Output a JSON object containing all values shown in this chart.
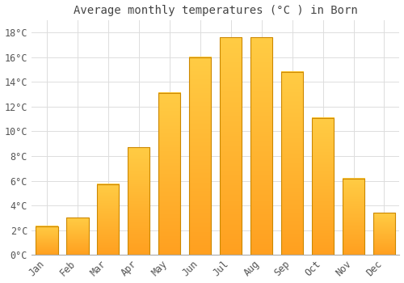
{
  "title": "Average monthly temperatures (°C ) in Born",
  "months": [
    "Jan",
    "Feb",
    "Mar",
    "Apr",
    "May",
    "Jun",
    "Jul",
    "Aug",
    "Sep",
    "Oct",
    "Nov",
    "Dec"
  ],
  "temperatures": [
    2.3,
    3.0,
    5.7,
    8.7,
    13.1,
    16.0,
    17.6,
    17.6,
    14.8,
    11.1,
    6.2,
    3.4
  ],
  "bar_color_top": "#FFCC44",
  "bar_color_bottom": "#FFA020",
  "bar_edge_color": "#CC8800",
  "background_color": "#ffffff",
  "plot_background": "#ffffff",
  "grid_color": "#dddddd",
  "text_color": "#444444",
  "tick_label_color": "#555555",
  "ylim": [
    0,
    19
  ],
  "yticks": [
    0,
    2,
    4,
    6,
    8,
    10,
    12,
    14,
    16,
    18
  ],
  "ytick_labels": [
    "0°C",
    "2°C",
    "4°C",
    "6°C",
    "8°C",
    "10°C",
    "12°C",
    "14°C",
    "16°C",
    "18°C"
  ],
  "title_fontsize": 10,
  "tick_fontsize": 8.5
}
